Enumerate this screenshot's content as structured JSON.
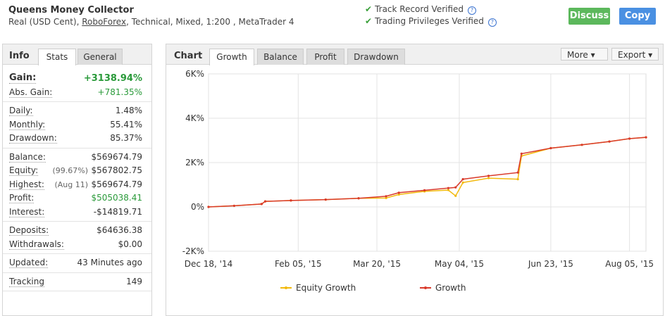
{
  "header": {
    "title": "Queens Money Collector",
    "subtitle": [
      "Real (USD Cent), ",
      "RoboForex",
      ", Technical, Mixed, 1:200 , MetaTrader 4"
    ],
    "verified": [
      "Track Record Verified",
      "Trading Privileges Verified"
    ],
    "buttons": [
      "Discuss",
      "Copy"
    ]
  },
  "stats": {
    "tabs": [
      "Info",
      "Stats",
      "General"
    ],
    "groups": [
      {
        "rows": [
          {
            "label": "Gain:",
            "value": "+3138.94%"
          },
          {
            "label": "Abs. Gain:",
            "value": "+781.35%"
          }
        ]
      },
      {
        "rows": [
          {
            "label": "Daily:",
            "value": "1.48%"
          },
          {
            "label": "Monthly:",
            "value": "55.41%"
          },
          {
            "label": "Drawdown:",
            "value": "85.37%"
          }
        ]
      },
      {
        "rows": [
          {
            "label": "Balance:",
            "value": "$569674.79"
          },
          {
            "label": "Equity:",
            "value": "$567802.75",
            "note": "(99.67%)"
          },
          {
            "label": "Highest:",
            "value": "$569674.79",
            "note": "(Aug 11)"
          },
          {
            "label": "Profit:",
            "value": "$505038.41"
          },
          {
            "label": "Interest:",
            "value": "-$14819.71"
          }
        ]
      },
      {
        "rows": [
          {
            "label": "Deposits:",
            "value": "$64636.38"
          },
          {
            "label": "Withdrawals:",
            "value": "$0.00"
          }
        ]
      },
      {
        "rows": [
          {
            "label": "Updated:",
            "value": "43 Minutes ago"
          }
        ]
      },
      {
        "rows": [
          {
            "label": "Tracking",
            "value": "149"
          }
        ]
      }
    ]
  },
  "chart_panel": {
    "title": "Chart",
    "tabs": [
      "Growth",
      "Balance",
      "Profit",
      "Drawdown"
    ],
    "menus": [
      "More",
      "Export"
    ]
  },
  "chart_data": {
    "type": "line",
    "x": [
      "2014-12-18",
      "2015-01-01",
      "2015-01-16",
      "2015-01-18",
      "2015-02-01",
      "2015-02-20",
      "2015-03-10",
      "2015-03-25",
      "2015-04-01",
      "2015-04-15",
      "2015-04-28",
      "2015-05-02",
      "2015-05-06",
      "2015-05-20",
      "2015-06-05",
      "2015-06-07",
      "2015-06-23",
      "2015-07-10",
      "2015-07-25",
      "2015-08-05",
      "2015-08-14"
    ],
    "series": [
      {
        "name": "Equity Growth",
        "color": "#f2b90c",
        "values": [
          0,
          50,
          130,
          250,
          290,
          330,
          390,
          400,
          560,
          700,
          760,
          500,
          1100,
          1300,
          1250,
          2300,
          2650,
          2800,
          2950,
          3080,
          3139
        ]
      },
      {
        "name": "Growth",
        "color": "#d93a2b",
        "values": [
          0,
          50,
          130,
          250,
          290,
          330,
          390,
          480,
          640,
          750,
          850,
          880,
          1250,
          1400,
          1550,
          2400,
          2650,
          2800,
          2950,
          3080,
          3139
        ]
      }
    ],
    "xlim": [
      "2014-12-18",
      "2015-08-14"
    ],
    "xticks": [
      {
        "value": "2014-12-18",
        "label": "Dec 18, '14"
      },
      {
        "value": "2015-02-05",
        "label": "Feb 05, '15"
      },
      {
        "value": "2015-03-20",
        "label": "Mar 20, '15"
      },
      {
        "value": "2015-05-04",
        "label": "May 04, '15"
      },
      {
        "value": "2015-06-23",
        "label": "Jun 23, '15"
      },
      {
        "value": "2015-08-05",
        "label": "Aug 05, '15"
      }
    ],
    "ylim": [
      -2000,
      6000
    ],
    "yticks": [
      {
        "value": -2000,
        "label": "-2K%"
      },
      {
        "value": 0,
        "label": "0%"
      },
      {
        "value": 2000,
        "label": "2K%"
      },
      {
        "value": 4000,
        "label": "4K%"
      },
      {
        "value": 6000,
        "label": "6K%"
      }
    ],
    "grid": true
  }
}
